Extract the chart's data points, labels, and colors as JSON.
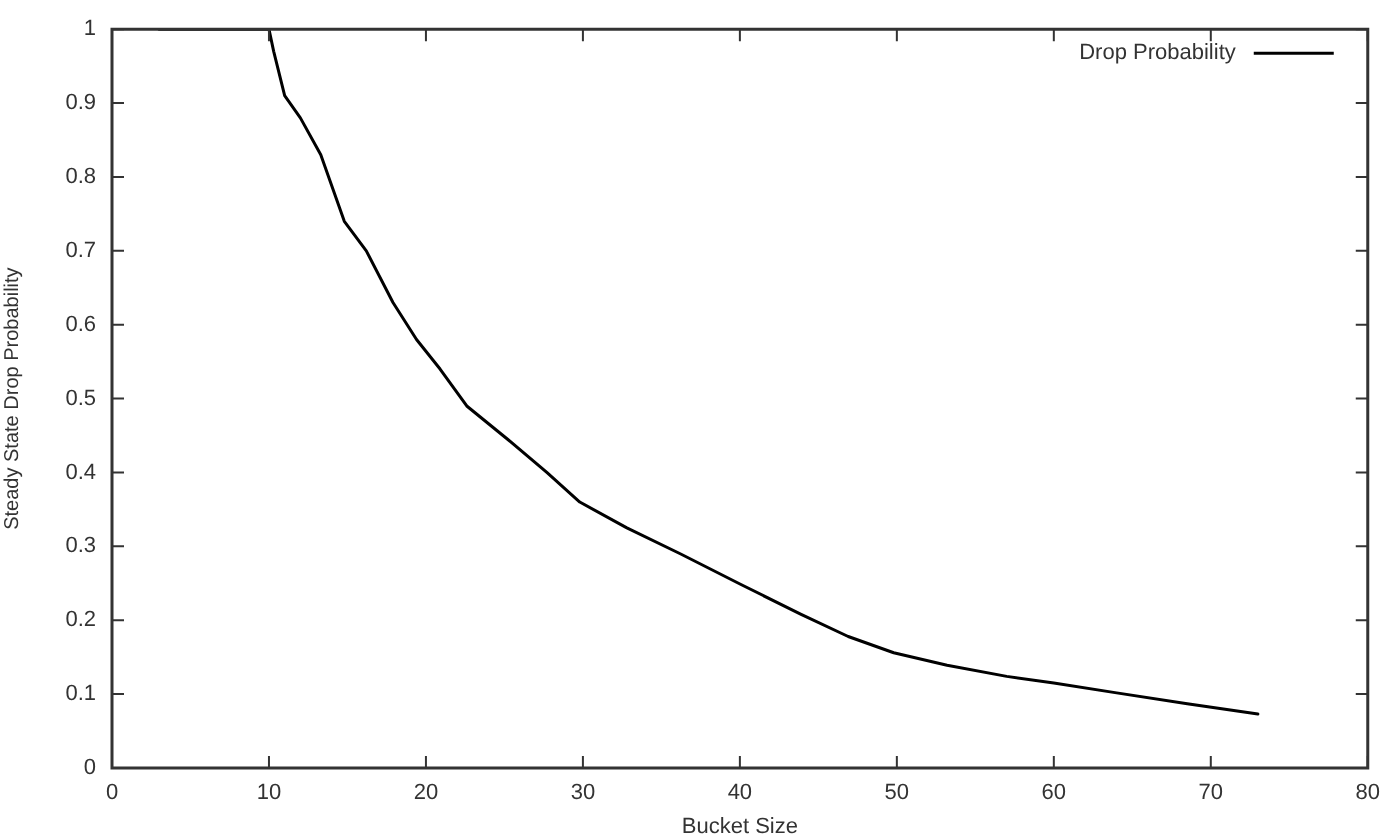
{
  "chart_data": {
    "type": "line",
    "xlabel": "Bucket Size",
    "ylabel": "Steady State Drop Probability",
    "x": [
      3,
      10,
      10.3,
      11,
      12,
      13.3,
      14.8,
      16.2,
      17.9,
      19.4,
      20.9,
      22.6,
      25.2,
      27.7,
      29.8,
      32.8,
      36.2,
      40.1,
      43.9,
      46.9,
      49.8,
      53.2,
      57,
      60,
      63.9,
      68.5,
      73
    ],
    "series": [
      {
        "name": "Drop Probability",
        "color": "#000000",
        "values": [
          1,
          1,
          0.97,
          0.91,
          0.88,
          0.83,
          0.74,
          0.7,
          0.63,
          0.58,
          0.54,
          0.49,
          0.445,
          0.4,
          0.36,
          0.325,
          0.29,
          0.248,
          0.208,
          0.178,
          0.156,
          0.139,
          0.124,
          0.115,
          0.102,
          0.087,
          0.073
        ]
      }
    ],
    "xlim": [
      0,
      80
    ],
    "ylim": [
      0,
      1
    ],
    "xticks": [
      0,
      10,
      20,
      30,
      40,
      50,
      60,
      70,
      80
    ],
    "yticks": [
      0,
      0.1,
      0.2,
      0.3,
      0.4,
      0.5,
      0.6,
      0.7,
      0.8,
      0.9,
      1
    ],
    "grid": false,
    "legend": "top right",
    "marker": "none",
    "line_style": "solid"
  }
}
